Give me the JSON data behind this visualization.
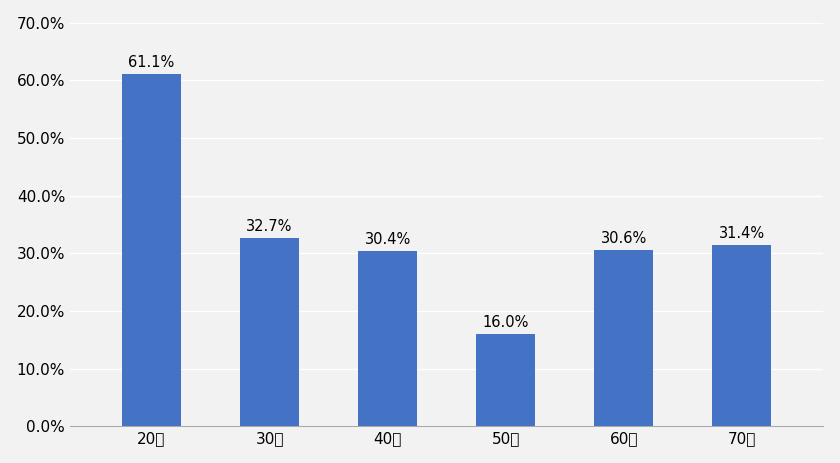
{
  "categories": [
    "20代",
    "30代",
    "40代",
    "50代",
    "60代",
    "70代"
  ],
  "values": [
    61.1,
    32.7,
    30.4,
    16.0,
    30.6,
    31.4
  ],
  "bar_color": "#4472C4",
  "ylim": [
    0,
    70
  ],
  "yticks": [
    0,
    10,
    20,
    30,
    40,
    50,
    60,
    70
  ],
  "background_color": "#f2f2f2",
  "plot_bg_color": "#f2f2f2",
  "grid_color": "#ffffff",
  "label_fontsize": 10.5,
  "tick_fontsize": 11,
  "bar_width": 0.5
}
